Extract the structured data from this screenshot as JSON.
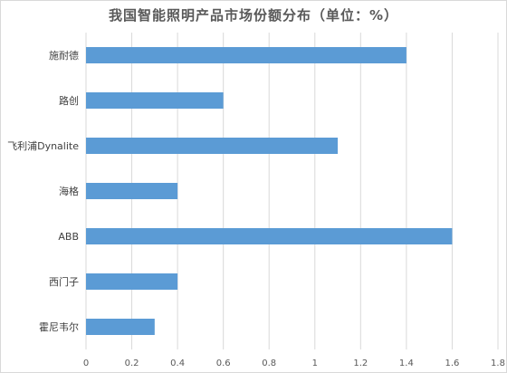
{
  "chart_data": {
    "type": "bar",
    "orientation": "horizontal",
    "title": "我国智能照明产品市场份额分布（单位：%）",
    "categories": [
      "施耐德",
      "路创",
      "飞利浦Dynalite",
      "海格",
      "ABB",
      "西门子",
      "霍尼韦尔"
    ],
    "values": [
      1.4,
      0.6,
      1.1,
      0.4,
      1.6,
      0.4,
      0.3
    ],
    "xlim": [
      0,
      1.8
    ],
    "xticks": [
      "0",
      "0.2",
      "0.4",
      "0.6",
      "0.8",
      "1",
      "1.2",
      "1.4",
      "1.6",
      "1.8"
    ],
    "xtick_values": [
      0,
      0.2,
      0.4,
      0.6,
      0.8,
      1.0,
      1.2,
      1.4,
      1.6,
      1.8
    ],
    "grid": "vertical",
    "legend": "none",
    "bar_color": "#5b9bd5",
    "grid_color": "#d9d9d9"
  }
}
